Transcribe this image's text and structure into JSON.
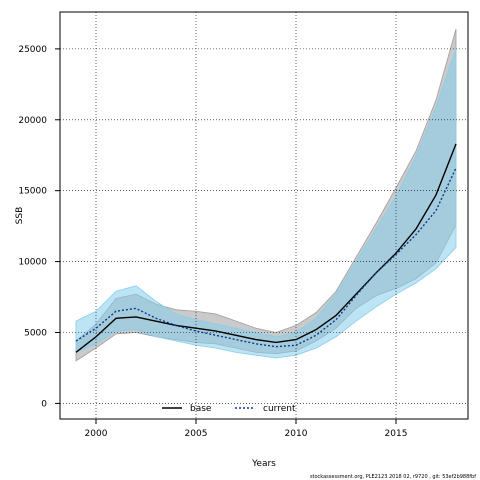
{
  "chart_data": {
    "type": "area",
    "xlabel": "Years",
    "ylabel": "SSB",
    "xlim": [
      1998.2,
      2018.6
    ],
    "ylim": [
      -1100,
      27600
    ],
    "x_ticks": [
      2000,
      2005,
      2010,
      2015
    ],
    "y_ticks": [
      0,
      5000,
      10000,
      15000,
      20000,
      25000
    ],
    "grid": "dotted",
    "legend_position": "bottom-center",
    "x": [
      1999,
      2000,
      2001,
      2002,
      2003,
      2004,
      2005,
      2006,
      2007,
      2008,
      2009,
      2010,
      2011,
      2012,
      2013,
      2014,
      2015,
      2016,
      2017,
      2018
    ],
    "series": [
      {
        "name": "base",
        "line_style": "solid",
        "line_color": "#000000",
        "band_color": "#9e9e9e",
        "values": [
          3600,
          4700,
          6000,
          6100,
          5800,
          5500,
          5300,
          5100,
          4800,
          4500,
          4300,
          4500,
          5200,
          6200,
          7700,
          9200,
          10600,
          12300,
          14700,
          18300
        ],
        "lower": [
          3000,
          3900,
          4900,
          5000,
          4700,
          4500,
          4300,
          4200,
          3900,
          3600,
          3500,
          3700,
          4400,
          5300,
          6700,
          7600,
          8100,
          8800,
          9900,
          12600
        ],
        "upper": [
          4400,
          5600,
          7400,
          7700,
          7000,
          6600,
          6500,
          6300,
          5800,
          5300,
          5000,
          5500,
          6400,
          7900,
          10300,
          12700,
          15200,
          17800,
          21400,
          26400
        ]
      },
      {
        "name": "current",
        "line_style": "dotted",
        "line_color": "#0b3a8c",
        "band_color": "#87ceeb",
        "values": [
          4400,
          5300,
          6500,
          6700,
          6000,
          5500,
          5100,
          4800,
          4500,
          4200,
          4000,
          4100,
          4800,
          5900,
          7600,
          9200,
          10500,
          11900,
          13600,
          16600
        ],
        "lower": [
          3600,
          4200,
          5100,
          5200,
          4700,
          4400,
          4100,
          3900,
          3600,
          3400,
          3200,
          3400,
          3900,
          4700,
          5800,
          6800,
          7700,
          8500,
          9500,
          11000
        ],
        "upper": [
          5800,
          6500,
          7900,
          8300,
          7200,
          6300,
          5900,
          5600,
          5300,
          5000,
          4700,
          5000,
          6000,
          7700,
          10000,
          12300,
          14600,
          17400,
          20900,
          25000
        ]
      }
    ]
  },
  "footer": "stockassessment.org, PLE2123 2018 02, r9720 , git: 53ef2b988fbf"
}
